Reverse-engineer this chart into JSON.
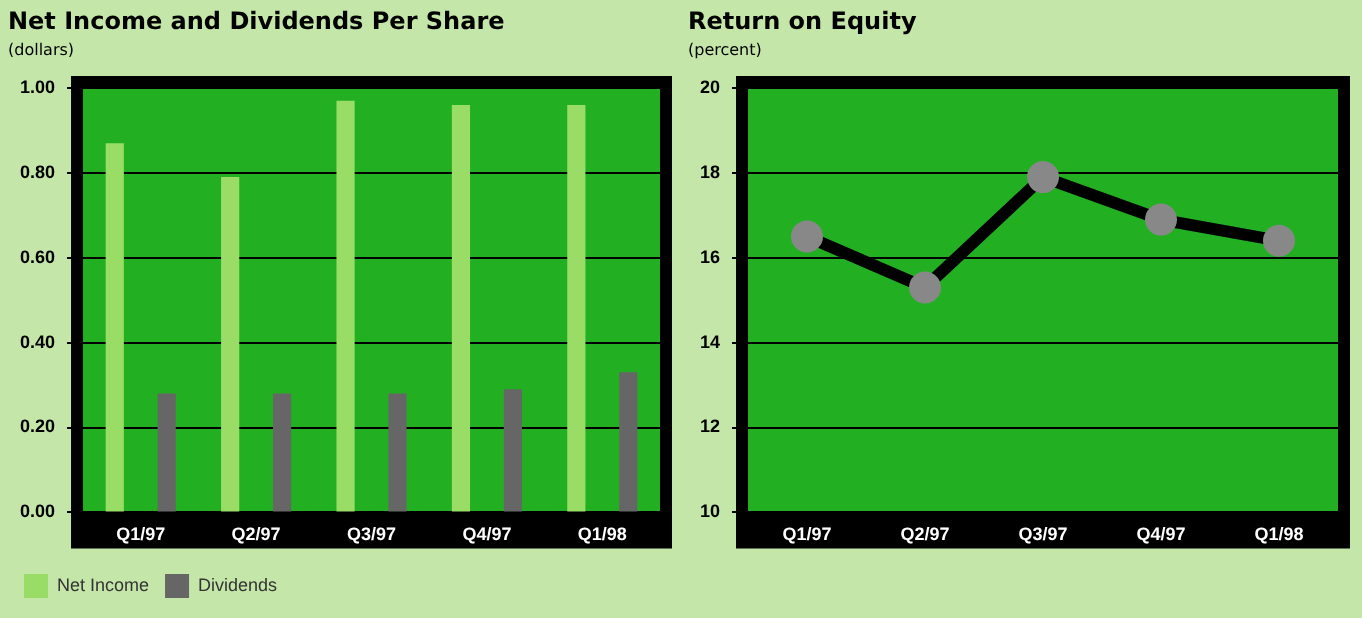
{
  "chart_data": [
    {
      "type": "bar",
      "title": "Net Income and Dividends Per Share",
      "subtitle": "(dollars)",
      "categories": [
        "Q1/97",
        "Q2/97",
        "Q3/97",
        "Q4/97",
        "Q1/98"
      ],
      "series": [
        {
          "name": "Net Income",
          "color": "#99dd66",
          "values": [
            0.87,
            0.79,
            0.97,
            0.96,
            0.96
          ]
        },
        {
          "name": "Dividends",
          "color": "#666666",
          "values": [
            0.28,
            0.28,
            0.28,
            0.29,
            0.33
          ]
        }
      ],
      "ylim": [
        0,
        1
      ],
      "yticks": [
        {
          "value": 0,
          "label": "0.00"
        },
        {
          "value": 0.2,
          "label": "0.20"
        },
        {
          "value": 0.4,
          "label": "0.40"
        },
        {
          "value": 0.6,
          "label": "0.60"
        },
        {
          "value": 0.8,
          "label": "0.80"
        },
        {
          "value": 1,
          "label": "1.00"
        }
      ],
      "grid": "y",
      "legend": "bottom"
    },
    {
      "type": "line",
      "title": "Return on Equity",
      "subtitle": "(percent)",
      "categories": [
        "Q1/97",
        "Q2/97",
        "Q3/97",
        "Q4/97",
        "Q1/98"
      ],
      "series": [
        {
          "color": "#000000",
          "values": [
            16.5,
            15.3,
            17.9,
            16.9,
            16.4
          ]
        }
      ],
      "ylim": [
        10,
        20
      ],
      "yticks": [
        10,
        12,
        14,
        16,
        18,
        20
      ],
      "grid": "y",
      "marker": "circle"
    }
  ]
}
